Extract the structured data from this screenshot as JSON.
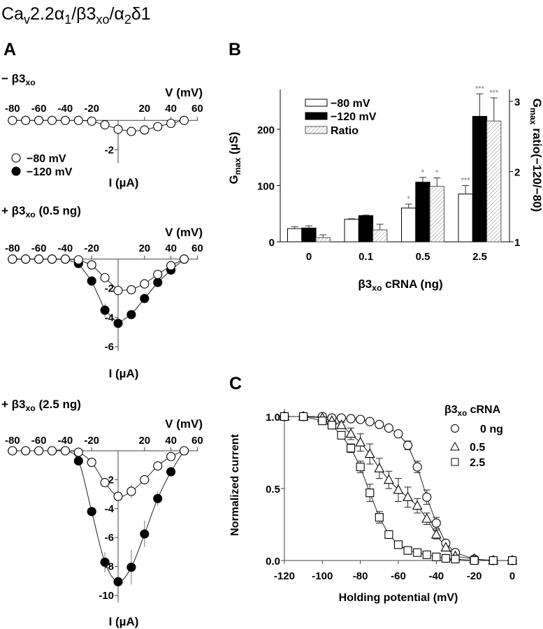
{
  "figure_title": {
    "parts": [
      "Ca",
      "v",
      "2.2α",
      "1",
      "/β3",
      "xo",
      "/α",
      "2",
      "δ1"
    ]
  },
  "panel_labels": {
    "a": "A",
    "b": "B",
    "c": "C"
  },
  "colors": {
    "ink": "#000000",
    "hatch": "#8c8c8c",
    "significance": "#7a7a7a",
    "background": "#ffffff"
  },
  "chart_data": [
    {
      "id": "A-no-beta",
      "type": "line",
      "title_parts": [
        "− β3",
        "xo"
      ],
      "xlabel": "V (mV)",
      "ylabel": "I (µA)",
      "xlim": [
        -80,
        60
      ],
      "ylim": [
        -2.9,
        0
      ],
      "xtick_values": [
        -80,
        -60,
        -40,
        -20,
        20,
        40,
        60
      ],
      "xtick_labels": [
        "-80",
        "-60",
        "-40",
        "-20",
        "20",
        "40",
        "60"
      ],
      "ytick_values": [
        -2
      ],
      "ytick_labels": [
        "-2"
      ],
      "x": [
        -80,
        -70,
        -60,
        -50,
        -40,
        -30,
        -20,
        -10,
        0,
        10,
        20,
        30,
        40,
        50
      ],
      "series": [
        {
          "name": "−80 mV",
          "marker": "open-circle",
          "values": [
            0,
            0,
            0,
            0,
            0,
            0,
            -0.05,
            -0.3,
            -0.6,
            -0.75,
            -0.65,
            -0.42,
            -0.2,
            0
          ],
          "sem": [
            0,
            0,
            0,
            0,
            0,
            0,
            0,
            0,
            0,
            0,
            0,
            0,
            0,
            0
          ]
        }
      ],
      "legend": [
        {
          "label": "−80 mV",
          "marker": "open-circle"
        },
        {
          "label": "−120 mV",
          "marker": "filled-circle"
        }
      ],
      "legend_position": "left"
    },
    {
      "id": "A-beta-0.5ng",
      "type": "line",
      "title_parts": [
        "+ β3",
        "xo",
        " (0.5 ng)"
      ],
      "xlabel": "V (mV)",
      "ylabel": "I (µA)",
      "xlim": [
        -80,
        60
      ],
      "ylim": [
        -6.3,
        0
      ],
      "xtick_values": [
        -80,
        -60,
        -40,
        -20,
        20,
        40,
        60
      ],
      "xtick_labels": [
        "-80",
        "-60",
        "-40",
        "-20",
        "20",
        "40",
        "60"
      ],
      "ytick_values": [
        -2,
        -4,
        -6
      ],
      "ytick_labels": [
        "-2",
        "-4",
        "-6"
      ],
      "x": [
        -80,
        -70,
        -60,
        -50,
        -40,
        -30,
        -20,
        -10,
        0,
        10,
        20,
        30,
        40,
        50
      ],
      "series": [
        {
          "name": "−80 mV",
          "marker": "open-circle",
          "values": [
            0,
            0,
            0,
            0,
            0,
            -0.05,
            -0.4,
            -1.27,
            -2.15,
            -2.1,
            -1.7,
            -1.05,
            -0.45,
            0
          ],
          "sem": [
            0,
            0,
            0,
            0,
            0,
            0,
            0.1,
            0.1,
            0.15,
            0.1,
            0.1,
            0.1,
            0.1,
            0
          ]
        },
        {
          "name": "−120 mV",
          "marker": "filled-circle",
          "values": [
            0,
            0,
            0,
            0,
            0,
            -0.3,
            -1.5,
            -3.5,
            -4.4,
            -3.8,
            -2.7,
            -1.6,
            -0.75,
            0
          ],
          "sem": [
            0,
            0,
            0,
            0,
            0,
            0.1,
            0.15,
            0.45,
            0.2,
            0.15,
            0.1,
            0.1,
            0.1,
            0
          ]
        }
      ]
    },
    {
      "id": "A-beta-2.5ng",
      "type": "line",
      "title_parts": [
        "+ β3",
        "xo",
        " (2.5 ng)"
      ],
      "xlabel": "V (mV)",
      "ylabel": "I (µA)",
      "xlim": [
        -80,
        60
      ],
      "ylim": [
        -10.5,
        0
      ],
      "xtick_values": [
        -80,
        -60,
        -40,
        -20,
        20,
        40,
        60
      ],
      "xtick_labels": [
        "-80",
        "-60",
        "-40",
        "-20",
        "20",
        "40",
        "60"
      ],
      "ytick_values": [
        -2,
        -4,
        -6,
        -8,
        -10
      ],
      "ytick_labels": [
        "-2",
        "-4",
        "-6",
        "-8",
        "-10"
      ],
      "x": [
        -80,
        -70,
        -60,
        -50,
        -40,
        -30,
        -20,
        -10,
        0,
        10,
        20,
        30,
        40,
        50
      ],
      "series": [
        {
          "name": "−80 mV",
          "marker": "open-circle",
          "values": [
            0,
            0,
            0,
            0,
            0,
            -0.1,
            -0.8,
            -2.2,
            -3.15,
            -2.8,
            -2.0,
            -1.05,
            -0.4,
            0
          ],
          "sem": [
            0,
            0,
            0,
            0,
            0,
            0.1,
            0.1,
            0.3,
            0.2,
            0.45,
            0.2,
            0.1,
            0.1,
            0
          ]
        },
        {
          "name": "−120 mV",
          "marker": "filled-circle",
          "values": [
            0,
            0,
            0,
            0,
            0,
            -0.7,
            -4.2,
            -7.7,
            -9.05,
            -8.05,
            -5.75,
            -3.3,
            -1.45,
            0
          ],
          "sem": [
            0,
            0,
            0,
            0,
            0,
            0.1,
            0.2,
            0.7,
            0.3,
            1.2,
            0.9,
            0.5,
            0.2,
            0
          ]
        }
      ]
    },
    {
      "id": "B",
      "type": "bar",
      "categories": [
        "0",
        "0.1",
        "0.5",
        "2.5"
      ],
      "xlabel_parts": [
        "β3",
        "xo",
        " cRNA (ng)"
      ],
      "ylabel_parts": [
        "G",
        "max",
        " (µS)"
      ],
      "y2label_parts": [
        "G",
        "max",
        " ratio(−120/−80)"
      ],
      "ylim": [
        0,
        270
      ],
      "y2lim": [
        1,
        3.17
      ],
      "ytick_values": [
        0,
        100,
        200
      ],
      "ytick_labels": [
        "0",
        "100",
        "200"
      ],
      "y2tick_values": [
        1,
        2,
        3
      ],
      "y2tick_labels": [
        "1",
        "2",
        "3"
      ],
      "series": [
        {
          "name": "−80 mV",
          "axis": "left",
          "fill": "white",
          "values": [
            23.5,
            40,
            60,
            85
          ],
          "sem": [
            3.5,
            1,
            7,
            15
          ],
          "significance": [
            "",
            "",
            "*",
            "***"
          ]
        },
        {
          "name": "−120 mV",
          "axis": "left",
          "fill": "black",
          "values": [
            24.5,
            46.5,
            106,
            223
          ],
          "sem": [
            4,
            1,
            8.5,
            40
          ],
          "significance": [
            "",
            "",
            "*",
            "***"
          ]
        },
        {
          "name": "Ratio",
          "axis": "right",
          "fill": "hatched",
          "values": [
            1.06,
            1.17,
            1.79,
            2.72
          ],
          "sem": [
            0.04,
            0.08,
            0.12,
            0.33
          ],
          "significance": [
            "",
            "",
            "*",
            "***"
          ]
        }
      ],
      "legend_position": "top-left"
    },
    {
      "id": "C",
      "type": "line",
      "xlabel": "Holding potential (mV)",
      "ylabel": "Normalized current",
      "xlim": [
        -120,
        0
      ],
      "ylim": [
        0,
        1.05
      ],
      "xtick_values": [
        -120,
        -100,
        -80,
        -60,
        -40,
        -20,
        0
      ],
      "xtick_labels": [
        "-120",
        "-100",
        "-80",
        "-60",
        "-40",
        "-20",
        "0"
      ],
      "ytick_values": [
        0,
        0.5,
        1.0
      ],
      "ytick_labels": [
        "0.0",
        "0.5",
        "1.0"
      ],
      "legend_title_parts": [
        "β3",
        "xo",
        " cRNA"
      ],
      "legend_position": "top-right",
      "x": [
        -120,
        -110,
        -100,
        -95,
        -90,
        -85,
        -80,
        -75,
        -70,
        -65,
        -60,
        -55,
        -50,
        -45,
        -40,
        -35,
        -30,
        -20,
        -10,
        0
      ],
      "series": [
        {
          "name": "0 ng",
          "marker": "open-circle",
          "values": [
            1,
            1,
            1,
            0.99,
            0.99,
            0.985,
            0.98,
            0.965,
            0.945,
            0.92,
            0.88,
            0.8,
            0.65,
            0.44,
            0.26,
            0.12,
            0.055,
            0.01,
            0,
            0
          ],
          "sem": [
            0,
            0,
            0,
            0,
            0,
            0,
            0,
            0,
            0,
            0,
            0.01,
            0.03,
            0.04,
            0.05,
            0.04,
            0.02,
            0.01,
            0,
            0,
            0
          ]
        },
        {
          "name": "0.5",
          "marker": "open-triangle",
          "values": [
            1,
            1,
            0.99,
            0.97,
            0.94,
            0.88,
            0.82,
            0.74,
            0.64,
            0.56,
            0.49,
            0.44,
            0.38,
            0.29,
            0.18,
            0.09,
            0.03,
            0.01,
            0,
            0
          ],
          "sem": [
            0,
            0,
            0,
            0,
            0.02,
            0.04,
            0.06,
            0.07,
            0.07,
            0.06,
            0.08,
            0.07,
            0.05,
            0.04,
            0.03,
            0.02,
            0.01,
            0,
            0,
            0
          ]
        },
        {
          "name": "2.5",
          "marker": "open-square",
          "values": [
            1,
            1,
            0.97,
            0.94,
            0.87,
            0.78,
            0.65,
            0.47,
            0.3,
            0.18,
            0.11,
            0.07,
            0.055,
            0.04,
            0.025,
            0.015,
            0.01,
            0,
            0,
            0
          ],
          "sem": [
            0,
            0,
            0,
            0,
            0.02,
            0.03,
            0.04,
            0.06,
            0.04,
            0.02,
            0.01,
            0.01,
            0,
            0,
            0,
            0,
            0,
            0,
            0,
            0
          ]
        }
      ]
    }
  ]
}
